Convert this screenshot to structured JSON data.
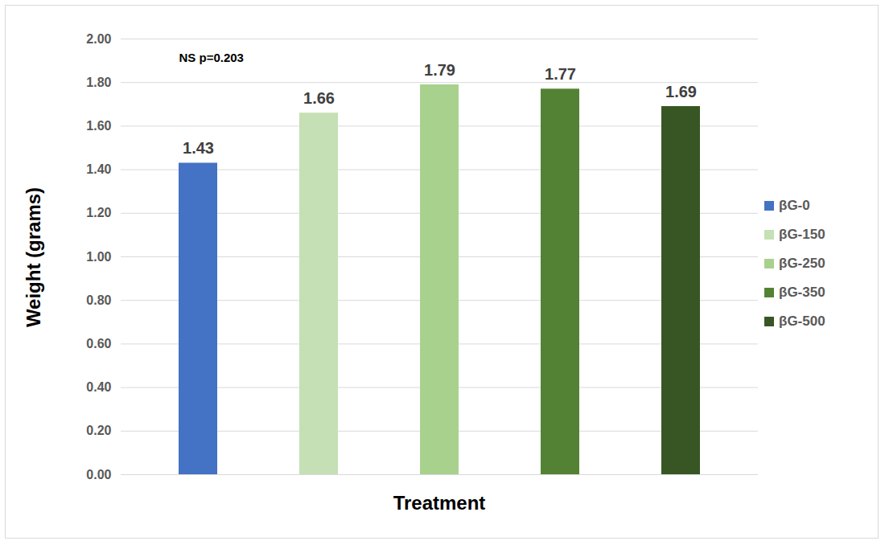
{
  "chart_data": {
    "type": "bar",
    "xlabel": "Treatment",
    "ylabel": "Weight (grams)",
    "annotations": [
      "NS p=0.203"
    ],
    "categories": [
      "βG-0",
      "βG-150",
      "βG-250",
      "βG-350",
      "βG-500"
    ],
    "values": [
      1.43,
      1.66,
      1.79,
      1.77,
      1.69
    ],
    "colors": [
      "#4472c4",
      "#c5e0b4",
      "#a9d18e",
      "#548235",
      "#375623"
    ],
    "ylim": [
      0,
      2
    ],
    "yticks": [
      {
        "value": 0,
        "label": "0.00"
      },
      {
        "value": 0.2,
        "label": "0.20"
      },
      {
        "value": 0.4,
        "label": "0.40"
      },
      {
        "value": 0.6,
        "label": "0.60"
      },
      {
        "value": 0.8,
        "label": "0.80"
      },
      {
        "value": 1,
        "label": "1.00"
      },
      {
        "value": 1.2,
        "label": "1.20"
      },
      {
        "value": 1.4,
        "label": "1.40"
      },
      {
        "value": 1.6,
        "label": "1.60"
      },
      {
        "value": 1.8,
        "label": "1.80"
      },
      {
        "value": 2,
        "label": "2.00"
      }
    ],
    "grid": true,
    "legend": "right",
    "data_labels": true,
    "tick_labels": "y"
  }
}
